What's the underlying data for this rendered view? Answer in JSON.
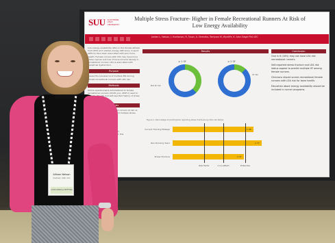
{
  "poster": {
    "logo": "SUU",
    "logo_sub": "SOUTHERN UTAH UNIVERSITY",
    "title": "Multiple Stress Fracture- Higher in Female Recreational Runners At Risk of Low Energy Availability",
    "authors": "Jordan L, Nelson, J. Huntsman, R, Tyson, A. Shrestha, Tomyson M, Wycliffe, K. Alan Siegel PhD ATC",
    "left_col": {
      "intro": "Low energy availability (LEA) in the female athlete triad (FAT) and relative energy deficiency in sport (RED-S) have been associated with poor bone health. Female runners with LEA may have bone stress injuries and loss of bone mineral density in recreational runners. LEA is associated with menstrual dysfunction.",
      "purpose_head": "Purpose",
      "purpose": "Assess the prevalence of multiple BSI among female recreational runners with LEA risk.",
      "methods_head": "Methods",
      "methods": "Online questionnaire administered to female recreational runners (18-65 yrs). LEAF-Q used to identify LEA risk and self-reported history of stress fractures.",
      "analysis_head": "Analysis",
      "analysis": "Chi-square analysis compared runners at risk vs. not at risk for LEA on history of multiple stress fractures.",
      "qr_text": "Scan to view references and supplementary materials for this study."
    },
    "mid_col": {
      "results_head": "Results",
      "donut1_label": "≥ 1 SF",
      "donut2_label": "≥ 2 SF",
      "donut1_legend": "Not at risk",
      "donut2_legend": "At risk",
      "caption": "Figure 1: Percentage of participants reporting stress fractures by LEA risk status.",
      "bars": [
        {
          "label": "Current Training Mileage",
          "value": 1.48
        },
        {
          "label": "Ran Running Years",
          "value": 1.77
        },
        {
          "label": "Stress Fracture",
          "value": 1.37
        }
      ],
      "axis_labels": [
        "Risk Factor",
        "1 (no effect)",
        "Protective"
      ]
    },
    "right_col": {
      "conclusion_head": "Conclusion",
      "bullets": [
        "One in 6 (16%) may not have LEA risk recreational runners.",
        "Self-reported stress fracture and LEA risk status appear to predict multiple SF among female runners.",
        "Clinicians should screen recreational female runners with LEA risk for bone health.",
        "Education about energy availability should be included in runner programs."
      ]
    }
  },
  "badge": {
    "name": "Allison Nelson",
    "sub": "Southern Utah Univ",
    "strip": "ACSM ANNUAL MEETING"
  },
  "colors": {
    "brand_red": "#c8102e",
    "bar_yellow": "#f2b705",
    "donut_blue": "#2f6fd1",
    "donut_green": "#6bbf3a"
  }
}
